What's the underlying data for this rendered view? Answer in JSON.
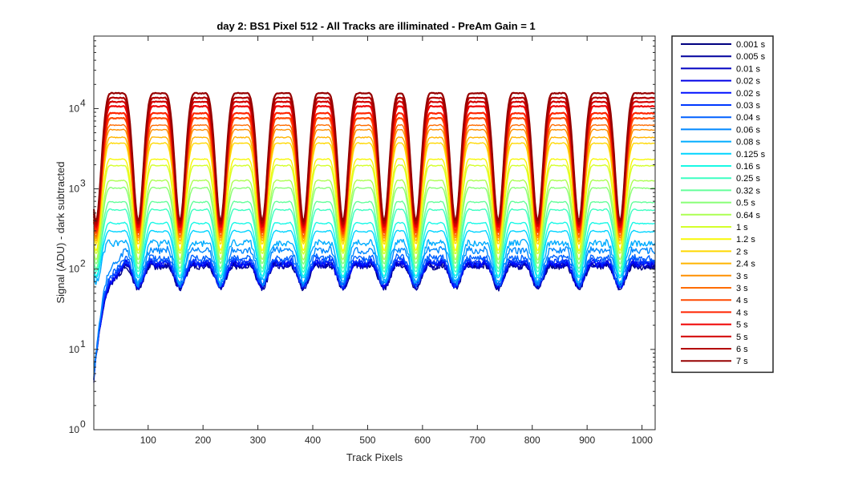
{
  "chart_data": {
    "type": "line",
    "title": "day 2: BS1  Pixel 512 - All Tracks are illiminated - PreAm Gain = 1",
    "xlabel": "Track Pixels",
    "ylabel": "Signal (ADU) - dark subtracted",
    "xlim": [
      1,
      1024
    ],
    "ylim": [
      1,
      80000
    ],
    "yscale": "log",
    "grid": false,
    "legend_position": "outside-right",
    "x_ticks": [
      100,
      200,
      300,
      400,
      500,
      600,
      700,
      800,
      900,
      1000
    ],
    "y_tick_labels": [
      {
        "value": 1,
        "base": "10",
        "exp": "0"
      },
      {
        "value": 10,
        "base": "10",
        "exp": "1"
      },
      {
        "value": 100,
        "base": "10",
        "exp": "2"
      },
      {
        "value": 1000,
        "base": "10",
        "exp": "3"
      },
      {
        "value": 10000,
        "base": "10",
        "exp": "4"
      }
    ],
    "track_dips_x": [
      5,
      82,
      158,
      232,
      308,
      383,
      455,
      530,
      588,
      660,
      738,
      810,
      885,
      960
    ],
    "series": [
      {
        "name": "0.001 s",
        "color": "#000080",
        "plateau": 110,
        "dip": 60
      },
      {
        "name": "0.005 s",
        "color": "#00009e",
        "plateau": 112,
        "dip": 60
      },
      {
        "name": "0.01 s",
        "color": "#0000c2",
        "plateau": 115,
        "dip": 62
      },
      {
        "name": "0.02 s",
        "color": "#0000e6",
        "plateau": 118,
        "dip": 63
      },
      {
        "name": "0.02 s",
        "color": "#0010ff",
        "plateau": 120,
        "dip": 64
      },
      {
        "name": "0.03 s",
        "color": "#0038ff",
        "plateau": 128,
        "dip": 65
      },
      {
        "name": "0.04 s",
        "color": "#0060ff",
        "plateau": 140,
        "dip": 66
      },
      {
        "name": "0.06 s",
        "color": "#0088ff",
        "plateau": 175,
        "dip": 68
      },
      {
        "name": "0.08 s",
        "color": "#00acff",
        "plateau": 215,
        "dip": 72
      },
      {
        "name": "0.125 s",
        "color": "#00d4ff",
        "plateau": 300,
        "dip": 80
      },
      {
        "name": "0.16 s",
        "color": "#18f8e6",
        "plateau": 380,
        "dip": 85
      },
      {
        "name": "0.25 s",
        "color": "#3cffc2",
        "plateau": 560,
        "dip": 95
      },
      {
        "name": "0.32 s",
        "color": "#64ff9a",
        "plateau": 700,
        "dip": 105
      },
      {
        "name": "0.5 s",
        "color": "#88ff76",
        "plateau": 1050,
        "dip": 120
      },
      {
        "name": "0.64 s",
        "color": "#acff52",
        "plateau": 1300,
        "dip": 135
      },
      {
        "name": "1 s",
        "color": "#d4ff2a",
        "plateau": 2000,
        "dip": 160
      },
      {
        "name": "1.2 s",
        "color": "#f8f806",
        "plateau": 2400,
        "dip": 175
      },
      {
        "name": "2 s",
        "color": "#ffd800",
        "plateau": 3800,
        "dip": 210
      },
      {
        "name": "2.4 s",
        "color": "#ffb400",
        "plateau": 4500,
        "dip": 230
      },
      {
        "name": "3 s",
        "color": "#ff9000",
        "plateau": 5600,
        "dip": 250
      },
      {
        "name": "3 s",
        "color": "#ff6c00",
        "plateau": 6400,
        "dip": 265
      },
      {
        "name": "4 s",
        "color": "#ff4800",
        "plateau": 7800,
        "dip": 290
      },
      {
        "name": "4 s",
        "color": "#ff2400",
        "plateau": 9000,
        "dip": 310
      },
      {
        "name": "5 s",
        "color": "#f00000",
        "plateau": 11000,
        "dip": 340
      },
      {
        "name": "5 s",
        "color": "#d20000",
        "plateau": 12500,
        "dip": 360
      },
      {
        "name": "6 s",
        "color": "#b40000",
        "plateau": 14000,
        "dip": 380
      },
      {
        "name": "7 s",
        "color": "#960000",
        "plateau": 16000,
        "dip": 410
      }
    ]
  }
}
